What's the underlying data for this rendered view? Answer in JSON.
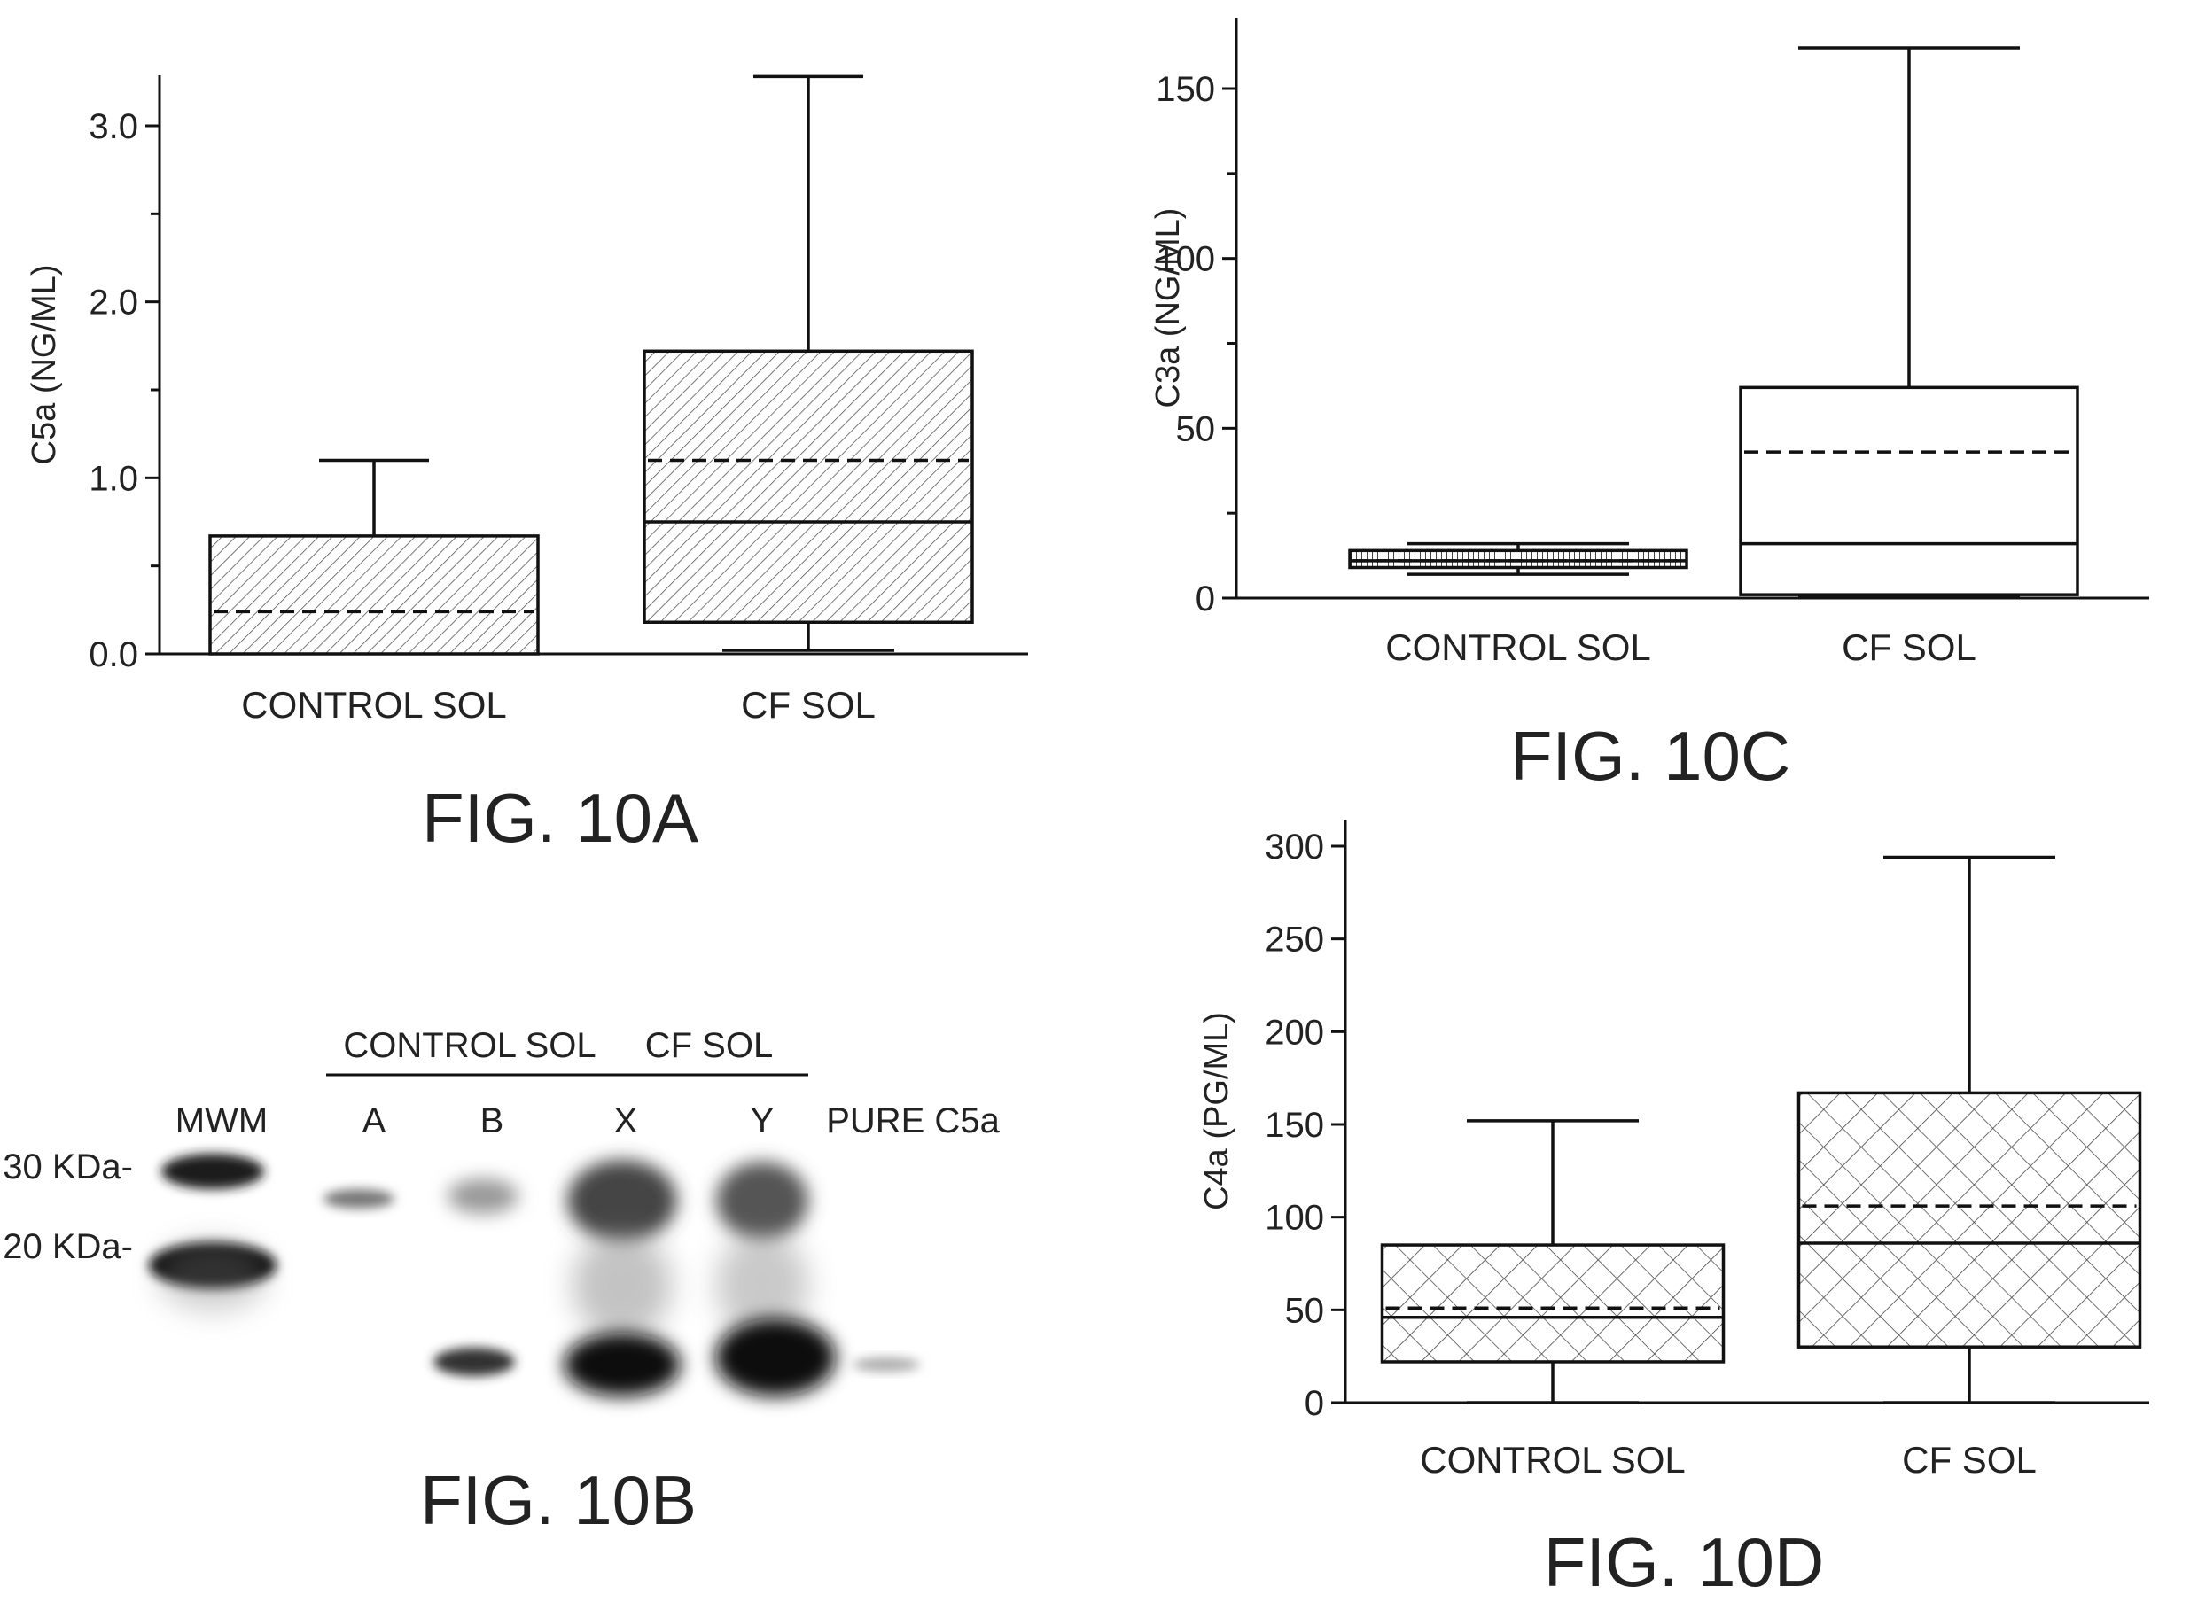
{
  "chart_data": [
    {
      "id": "10A",
      "type": "box",
      "figure_label": "FIG. 10A",
      "ylabel": "C5a (NG/ML)",
      "xlabel": "",
      "ylim": [
        0,
        3.0
      ],
      "yticks": [
        0.0,
        1.0,
        2.0,
        3.0
      ],
      "ytick_labels": [
        "0.0",
        "1.0",
        "2.0",
        "3.0"
      ],
      "minor_ticks": [
        0.5,
        1.5,
        2.5
      ],
      "fill_pattern": "dense-diagonal",
      "categories": [
        "CONTROL SOL",
        "CF SOL"
      ],
      "boxes": [
        {
          "category": "CONTROL SOL",
          "min": 0.0,
          "q1": 0.0,
          "median": 0.0,
          "mean": 0.24,
          "q3": 0.67,
          "max": 1.1
        },
        {
          "category": "CF SOL",
          "min": 0.02,
          "q1": 0.18,
          "median": 0.75,
          "mean": 1.1,
          "q3": 1.72,
          "max": 3.28
        }
      ]
    },
    {
      "id": "10C",
      "type": "box",
      "figure_label": "FIG. 10C",
      "ylabel": "C3a (NG/ML)",
      "xlabel": "",
      "ylim": [
        0,
        160
      ],
      "yticks": [
        0,
        50,
        100,
        150
      ],
      "ytick_labels": [
        "0",
        "50",
        "100",
        "150"
      ],
      "minor_ticks": [
        25,
        75,
        125
      ],
      "fill_pattern": "none",
      "categories": [
        "CONTROL SOL",
        "CF SOL"
      ],
      "boxes": [
        {
          "category": "CONTROL SOL",
          "min": 7,
          "q1": 9,
          "median": 11,
          "mean": 11,
          "q3": 14,
          "max": 16,
          "fill": "vertical-hatch"
        },
        {
          "category": "CF SOL",
          "min": 0.5,
          "q1": 1,
          "median": 16,
          "mean": 43,
          "q3": 62,
          "max": 162,
          "fill": "none"
        }
      ]
    },
    {
      "id": "10D",
      "type": "box",
      "figure_label": "FIG. 10D",
      "ylabel": "C4a (PG/ML)",
      "xlabel": "",
      "ylim": [
        0,
        300
      ],
      "yticks": [
        0,
        50,
        100,
        150,
        200,
        250,
        300
      ],
      "ytick_labels": [
        "0",
        "50",
        "100",
        "150",
        "200",
        "250",
        "300"
      ],
      "minor_ticks": [],
      "fill_pattern": "cross-hatch",
      "categories": [
        "CONTROL SOL",
        "CF SOL"
      ],
      "boxes": [
        {
          "category": "CONTROL SOL",
          "min": 0,
          "q1": 22,
          "median": 46,
          "mean": 51,
          "q3": 85,
          "max": 152
        },
        {
          "category": "CF SOL",
          "min": 0,
          "q1": 30,
          "median": 86,
          "mean": 106,
          "q3": 167,
          "max": 294
        }
      ]
    }
  ],
  "blot": {
    "figure_label": "FIG. 10B",
    "group_labels": [
      "CONTROL SOL",
      "CF SOL"
    ],
    "lane_labels": [
      "MWM",
      "A",
      "B",
      "X",
      "Y",
      "PURE C5a"
    ],
    "marker_labels": [
      "30 KDa-",
      "20 KDa-"
    ]
  }
}
